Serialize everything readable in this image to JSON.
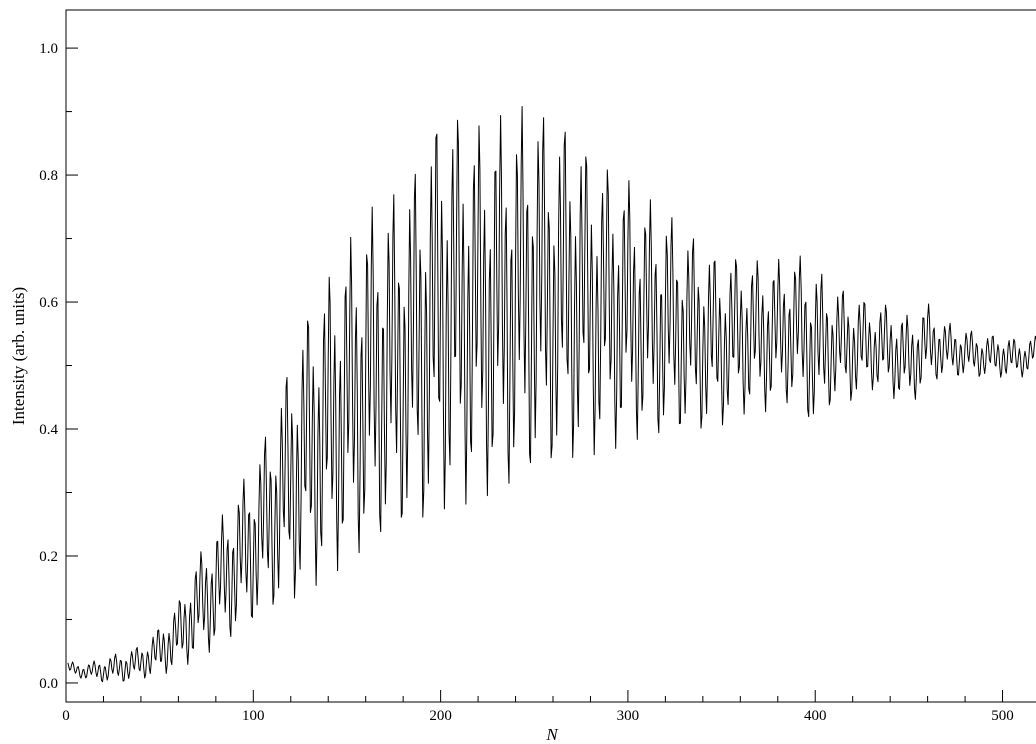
{
  "chart_data": {
    "type": "line",
    "title": "",
    "xlabel": "N",
    "ylabel": "Intensity (arb. units)",
    "xlim": [
      0,
      520
    ],
    "ylim": [
      -0.03,
      1.06
    ],
    "x_ticks": [
      0,
      100,
      200,
      300,
      400,
      500
    ],
    "x_tick_labels": [
      "0",
      "100",
      "200",
      "300",
      "400",
      "500"
    ],
    "y_ticks": [
      0.0,
      0.2,
      0.4,
      0.6,
      0.8,
      1.0
    ],
    "y_tick_labels": [
      "0.0",
      "0.2",
      "0.4",
      "0.6",
      "0.8",
      "1.0"
    ],
    "grid": false,
    "series": [
      {
        "color": "#000000",
        "x": [
          0,
          10,
          20,
          30,
          40,
          50,
          60,
          70,
          80,
          90,
          100,
          110,
          120,
          130,
          140,
          150,
          160,
          170,
          180,
          190,
          200,
          210,
          220,
          230,
          240,
          250,
          260,
          270,
          280,
          290,
          300,
          310,
          320,
          330,
          340,
          350,
          360,
          370,
          380,
          390,
          400,
          410,
          420,
          430,
          440,
          450,
          460,
          470,
          480,
          490,
          500,
          510,
          520
        ],
        "upper": [
          0.035,
          0.03,
          0.04,
          0.05,
          0.06,
          0.09,
          0.13,
          0.2,
          0.25,
          0.3,
          0.35,
          0.42,
          0.52,
          0.6,
          0.65,
          0.7,
          0.75,
          0.77,
          0.79,
          0.84,
          0.92,
          0.91,
          0.89,
          0.9,
          0.91,
          0.93,
          0.88,
          0.9,
          0.84,
          0.82,
          0.8,
          0.77,
          0.75,
          0.72,
          0.7,
          0.67,
          0.68,
          0.67,
          0.67,
          0.68,
          0.66,
          0.63,
          0.62,
          0.6,
          0.6,
          0.58,
          0.6,
          0.57,
          0.56,
          0.55,
          0.55,
          0.54,
          0.55
        ],
        "lower": [
          0.015,
          0.005,
          0.0,
          0.0,
          0.005,
          0.01,
          0.02,
          0.035,
          0.05,
          0.07,
          0.09,
          0.11,
          0.12,
          0.14,
          0.16,
          0.18,
          0.2,
          0.22,
          0.23,
          0.24,
          0.26,
          0.27,
          0.28,
          0.29,
          0.3,
          0.32,
          0.33,
          0.34,
          0.35,
          0.36,
          0.37,
          0.38,
          0.38,
          0.39,
          0.39,
          0.4,
          0.42,
          0.42,
          0.43,
          0.44,
          0.39,
          0.44,
          0.44,
          0.46,
          0.45,
          0.43,
          0.47,
          0.48,
          0.48,
          0.48,
          0.48,
          0.48,
          0.5
        ]
      }
    ]
  }
}
